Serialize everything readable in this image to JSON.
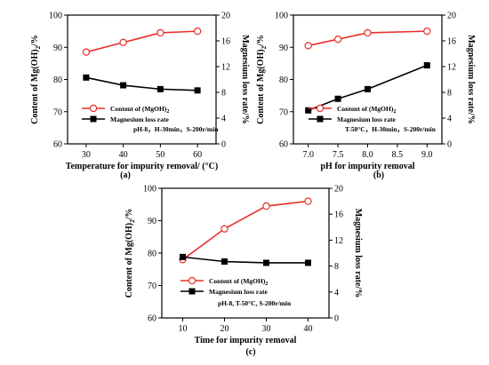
{
  "colors": {
    "content": "#e8302a",
    "loss": "#000000"
  },
  "chart_data": [
    {
      "type": "line",
      "panel_label": "(a)",
      "xlabel": "Temperature for impurity removal/ (°C)",
      "ylabel_left_prefix": "Content of  Mg(OH)",
      "ylabel_left_sub": "2",
      "ylabel_left_suffix": "/%",
      "ylabel_right": "Magnesium loss rate/%",
      "x": [
        30,
        40,
        50,
        60
      ],
      "xticks": [
        "30",
        "40",
        "50",
        "60"
      ],
      "xlim": [
        25,
        65
      ],
      "ylim_left": [
        60,
        100
      ],
      "ylim_right": [
        0,
        20
      ],
      "yticks_left": [
        "60",
        "70",
        "80",
        "90",
        "100"
      ],
      "yticks_right": [
        "0",
        "4",
        "8",
        "12",
        "16",
        "20"
      ],
      "series": [
        {
          "name": "Content of (MgOH)2",
          "axis": "left",
          "values": [
            88.5,
            91.5,
            94.5,
            95.0
          ]
        },
        {
          "name": "Magnesium loss rate",
          "axis": "right",
          "values": [
            10.3,
            9.1,
            8.5,
            8.3
          ]
        }
      ],
      "legend": {
        "content_prefix": "Content of (MgOH)",
        "content_sub": "2",
        "loss": "Magnesium loss rate"
      },
      "condition": "pH-8，H-30min，S-200r/min"
    },
    {
      "type": "line",
      "panel_label": "(b)",
      "xlabel": "pH for impurity removal",
      "ylabel_left_prefix": "Content of  Mg(OH)",
      "ylabel_left_sub": "2",
      "ylabel_left_suffix": "/%",
      "ylabel_right": "Magnesium loss rate/%",
      "x": [
        7.0,
        7.5,
        8.0,
        9.0
      ],
      "xticks": [
        "7.0",
        "7.5",
        "8.0",
        "8.5",
        "9.0"
      ],
      "xtick_values": [
        7.0,
        7.5,
        8.0,
        8.5,
        9.0
      ],
      "xlim": [
        6.75,
        9.25
      ],
      "ylim_left": [
        60,
        100
      ],
      "ylim_right": [
        0,
        20
      ],
      "yticks_left": [
        "60",
        "70",
        "80",
        "90",
        "100"
      ],
      "yticks_right": [
        "0",
        "4",
        "8",
        "12",
        "16",
        "20"
      ],
      "series": [
        {
          "name": "Content of (MgOH)2",
          "axis": "left",
          "values": [
            90.5,
            92.5,
            94.5,
            95.0
          ]
        },
        {
          "name": "Magnesium loss rate",
          "axis": "right",
          "values": [
            5.2,
            7.0,
            8.5,
            12.2
          ]
        }
      ],
      "legend": {
        "content_prefix": "Content of (MgOH)",
        "content_sub": "2",
        "loss": "Magnesium loss rate"
      },
      "condition": "T-50°C，H-30min，S-200r/min"
    },
    {
      "type": "line",
      "panel_label": "(c)",
      "xlabel": "Time for impurity removal",
      "ylabel_left_prefix": "Content of  Mg(OH)",
      "ylabel_left_sub": "2",
      "ylabel_left_suffix": "/%",
      "ylabel_right": "Magnesium loss rate/%",
      "x": [
        10,
        20,
        30,
        40
      ],
      "xticks": [
        "10",
        "20",
        "30",
        "40"
      ],
      "xlim": [
        5,
        45
      ],
      "ylim_left": [
        60,
        100
      ],
      "ylim_right": [
        0,
        20
      ],
      "yticks_left": [
        "60",
        "70",
        "80",
        "90",
        "100"
      ],
      "yticks_right": [
        "0",
        "4",
        "8",
        "12",
        "16",
        "20"
      ],
      "series": [
        {
          "name": "Content of (MgOH)2",
          "axis": "left",
          "values": [
            78.0,
            87.5,
            94.5,
            96.0
          ]
        },
        {
          "name": "Magnesium loss rate",
          "axis": "right",
          "values": [
            9.4,
            8.7,
            8.5,
            8.5
          ]
        }
      ],
      "legend": {
        "content_prefix": "Content of (MgOH)",
        "content_sub": "2",
        "loss": "Magnesium loss rate"
      },
      "condition": "pH-8, T-50°C, S-200r/min"
    }
  ]
}
